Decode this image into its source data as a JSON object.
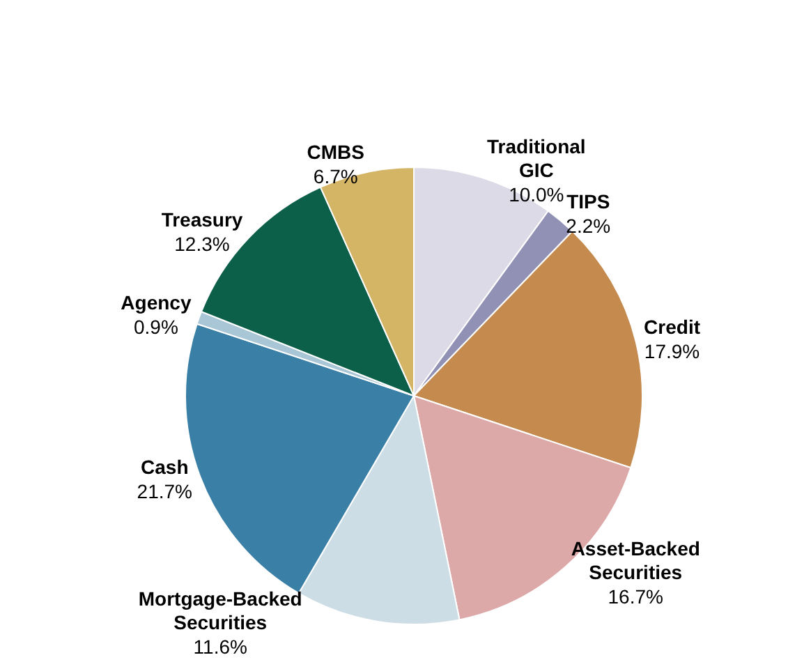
{
  "chart_data": {
    "type": "pie",
    "categories": [
      "Traditional GIC",
      "TIPS",
      "Credit",
      "Asset-Backed Securities",
      "Mortgage-Backed Securities",
      "Cash",
      "Agency",
      "Treasury",
      "CMBS"
    ],
    "values": [
      10.0,
      2.2,
      17.9,
      16.7,
      11.6,
      21.7,
      0.9,
      12.3,
      6.7
    ],
    "value_labels": [
      "10.0%",
      "2.2%",
      "17.9%",
      "16.7%",
      "11.6%",
      "21.7%",
      "0.9%",
      "12.3%",
      "6.7%"
    ],
    "colors": [
      "#dcdae6",
      "#9191b5",
      "#c48a4e",
      "#dca8a8",
      "#cddde6",
      "#3a7fa6",
      "#a9c6d6",
      "#0c6049",
      "#d4b465"
    ],
    "legend": false
  }
}
